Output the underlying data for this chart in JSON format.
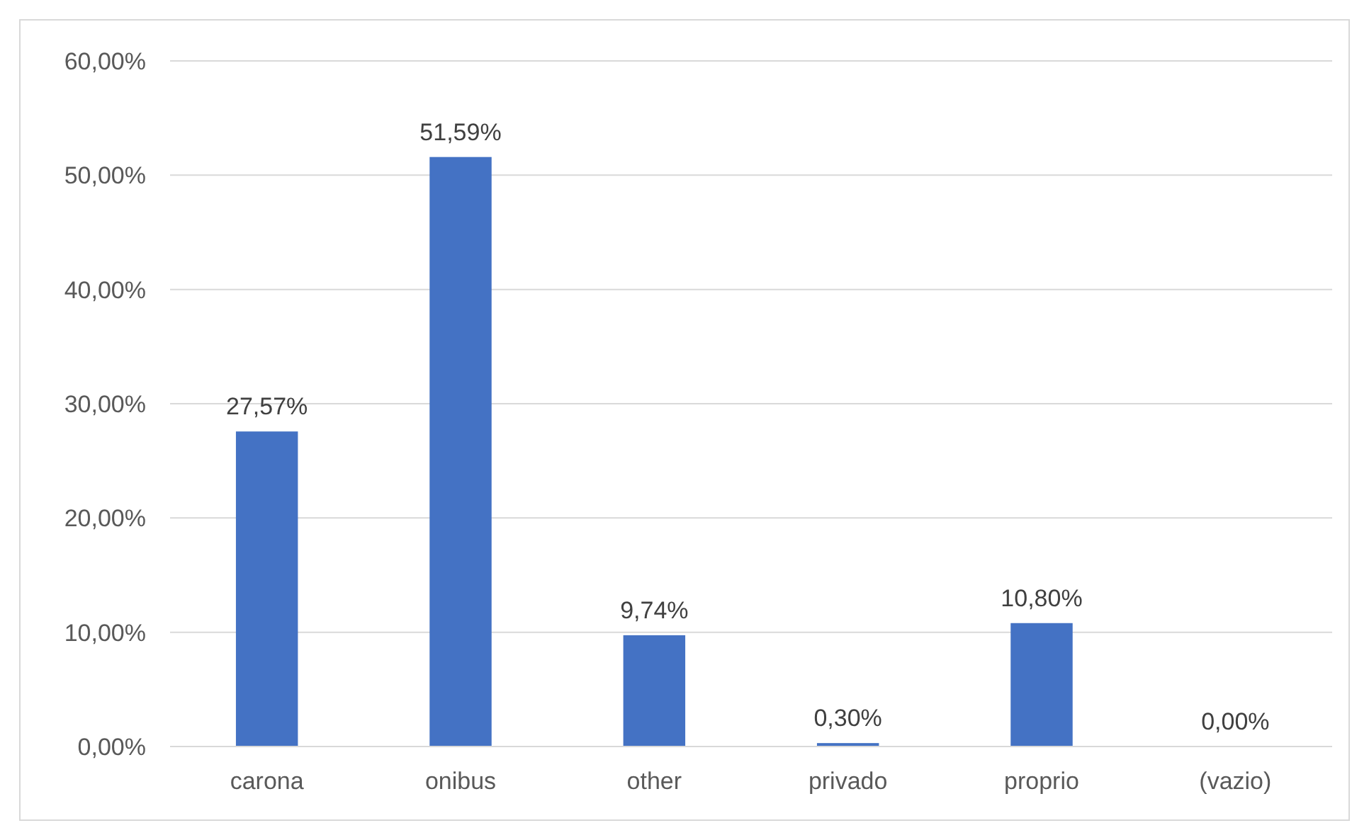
{
  "chart_data": {
    "type": "bar",
    "categories": [
      "carona",
      "onibus",
      "other",
      "privado",
      "proprio",
      "(vazio)"
    ],
    "values": [
      27.57,
      51.59,
      9.74,
      0.3,
      10.8,
      0
    ],
    "value_labels": [
      "27,57%",
      "51,59%",
      "9,74%",
      "0,30%",
      "10,80%",
      "0,00%"
    ],
    "color": "#4472c4",
    "ylim": [
      0,
      60
    ],
    "yticks": [
      {
        "value": 0,
        "label": "0,00%"
      },
      {
        "value": 10,
        "label": "10,00%"
      },
      {
        "value": 20,
        "label": "20,00%"
      },
      {
        "value": 30,
        "label": "30,00%"
      },
      {
        "value": 40,
        "label": "40,00%"
      },
      {
        "value": 50,
        "label": "50,00%"
      },
      {
        "value": 60,
        "label": "60,00%"
      }
    ],
    "grid": "y"
  }
}
